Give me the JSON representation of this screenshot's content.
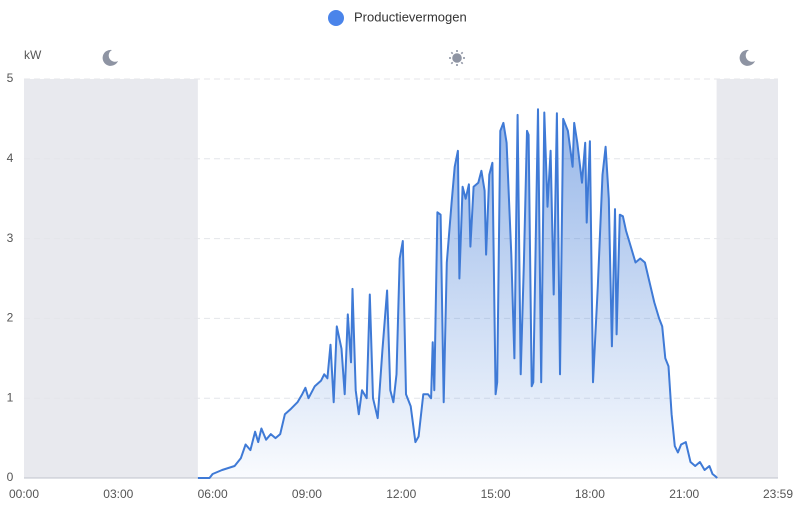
{
  "chart_data": {
    "type": "area",
    "y_label": "kW",
    "xlim": [
      0,
      23.9833
    ],
    "xticks": [
      {
        "value": 0,
        "label": "00:00"
      },
      {
        "value": 3,
        "label": "03:00"
      },
      {
        "value": 6,
        "label": "06:00"
      },
      {
        "value": 9,
        "label": "09:00"
      },
      {
        "value": 12,
        "label": "12:00"
      },
      {
        "value": 15,
        "label": "15:00"
      },
      {
        "value": 18,
        "label": "18:00"
      },
      {
        "value": 21,
        "label": "21:00"
      },
      {
        "value": 23.9833,
        "label": "23:59"
      }
    ],
    "ylim": [
      0,
      5
    ],
    "yticks": [
      0,
      1,
      2,
      3,
      4,
      5
    ],
    "grid": true,
    "night_periods": [
      [
        0,
        5.53
      ],
      [
        22.03,
        23.9833
      ]
    ],
    "night_color": "#e8e9ee",
    "x": [
      5.53,
      5.9,
      6.0,
      6.3,
      6.7,
      6.9,
      7.05,
      7.2,
      7.35,
      7.45,
      7.55,
      7.7,
      7.85,
      8.0,
      8.15,
      8.3,
      8.5,
      8.7,
      8.85,
      8.95,
      9.05,
      9.25,
      9.45,
      9.55,
      9.65,
      9.75,
      9.85,
      9.95,
      10.1,
      10.2,
      10.3,
      10.4,
      10.45,
      10.55,
      10.65,
      10.75,
      10.9,
      11.0,
      11.1,
      11.25,
      11.4,
      11.55,
      11.65,
      11.75,
      11.85,
      11.95,
      12.05,
      12.15,
      12.3,
      12.45,
      12.55,
      12.7,
      12.85,
      12.95,
      13.0,
      13.05,
      13.15,
      13.25,
      13.35,
      13.45,
      13.6,
      13.7,
      13.8,
      13.85,
      13.95,
      14.05,
      14.15,
      14.2,
      14.3,
      14.45,
      14.55,
      14.65,
      14.7,
      14.8,
      14.9,
      15.0,
      15.05,
      15.15,
      15.25,
      15.35,
      15.5,
      15.6,
      15.7,
      15.8,
      15.9,
      16.0,
      16.05,
      16.15,
      16.2,
      16.35,
      16.45,
      16.55,
      16.65,
      16.75,
      16.85,
      16.95,
      17.05,
      17.15,
      17.3,
      17.45,
      17.5,
      17.6,
      17.75,
      17.85,
      17.9,
      18.0,
      18.1,
      18.25,
      18.4,
      18.5,
      18.6,
      18.7,
      18.8,
      18.85,
      18.95,
      19.05,
      19.15,
      19.3,
      19.45,
      19.6,
      19.75,
      19.9,
      20.05,
      20.2,
      20.3,
      20.4,
      20.5,
      20.6,
      20.7,
      20.8,
      20.9,
      21.05,
      21.2,
      21.35,
      21.5,
      21.65,
      21.8,
      21.9,
      22.0,
      22.05
    ],
    "series": [
      {
        "name": "Productievermogen",
        "color": "#3f7ad6",
        "legend_color": "#4a84ea",
        "values": [
          0,
          0,
          0.05,
          0.1,
          0.15,
          0.25,
          0.42,
          0.35,
          0.58,
          0.45,
          0.62,
          0.48,
          0.55,
          0.5,
          0.55,
          0.8,
          0.87,
          0.95,
          1.05,
          1.13,
          1.0,
          1.15,
          1.22,
          1.3,
          1.25,
          1.67,
          0.95,
          1.9,
          1.62,
          1.05,
          2.05,
          1.45,
          2.37,
          1.1,
          0.8,
          1.1,
          1.0,
          2.3,
          1.0,
          0.75,
          1.6,
          2.35,
          1.1,
          0.95,
          1.3,
          2.75,
          2.97,
          1.05,
          0.9,
          0.45,
          0.52,
          1.05,
          1.05,
          1.0,
          1.7,
          1.1,
          3.33,
          3.3,
          0.95,
          2.7,
          3.45,
          3.9,
          4.1,
          2.5,
          3.65,
          3.5,
          3.68,
          2.9,
          3.65,
          3.7,
          3.85,
          3.6,
          2.8,
          3.8,
          3.95,
          1.05,
          1.2,
          4.35,
          4.45,
          4.2,
          2.8,
          1.5,
          4.55,
          1.3,
          2.7,
          4.35,
          4.3,
          1.15,
          1.2,
          4.62,
          1.2,
          4.58,
          3.4,
          4.1,
          2.3,
          4.57,
          1.3,
          4.5,
          4.35,
          3.9,
          4.45,
          4.2,
          3.7,
          4.2,
          3.2,
          4.22,
          1.2,
          2.4,
          3.8,
          4.15,
          3.5,
          1.65,
          3.37,
          1.8,
          3.3,
          3.28,
          3.1,
          2.9,
          2.7,
          2.75,
          2.7,
          2.45,
          2.2,
          2.0,
          1.9,
          1.5,
          1.4,
          0.8,
          0.4,
          0.32,
          0.42,
          0.45,
          0.2,
          0.15,
          0.2,
          0.1,
          0.15,
          0.05,
          0.02,
          0
        ]
      }
    ]
  }
}
